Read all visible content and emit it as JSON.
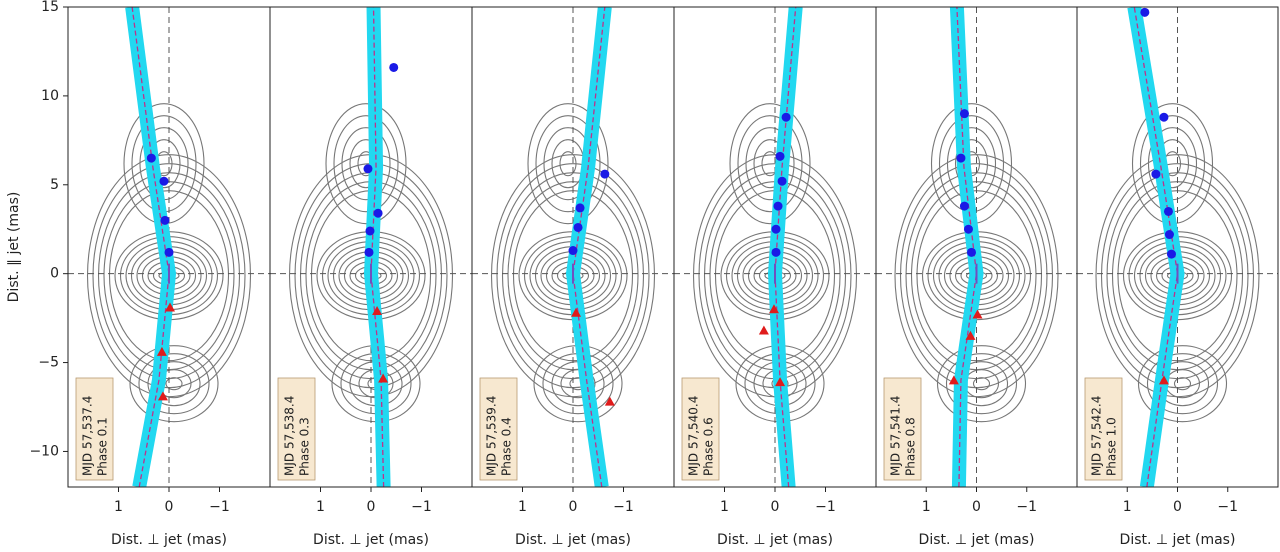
{
  "chart_data": [
    {
      "type": "scatter",
      "mjd": "MJD 57,537.4",
      "phase": "Phase 0.1",
      "x_label": "Dist. ⊥ jet (mas)",
      "y_label": "Dist. ∥ jet (mas)",
      "xlim": [
        2,
        -2
      ],
      "xticks": [
        1,
        0,
        {
          "value": -1,
          "label": "−1"
        }
      ],
      "ylim": [
        -12,
        15
      ],
      "yticks": [
        {
          "value": -10,
          "label": "−10"
        },
        {
          "value": -5,
          "label": "−5"
        },
        0,
        5,
        10,
        15
      ],
      "series": [
        {
          "marker": "circle",
          "color": "#1a1ae6",
          "x": [
            0.35,
            0.1,
            0.08,
            0
          ],
          "values": [
            6.5,
            5.2,
            3.0,
            1.2
          ]
        },
        {
          "marker": "triangle",
          "color": "#e01b1b",
          "x": [
            -0.02,
            0.14,
            0.12
          ],
          "values": [
            -1.9,
            -4.4,
            -6.9
          ]
        },
        {
          "marker": "line",
          "color": "#22d8f0",
          "x": [
            0.59,
            0.2,
            0,
            0.32,
            0.73
          ],
          "values": [
            -12,
            -6,
            0,
            6,
            15
          ]
        }
      ]
    },
    {
      "type": "scatter",
      "mjd": "MJD 57,538.4",
      "phase": "Phase 0.3",
      "x_label": "Dist. ⊥ jet (mas)",
      "xlim": [
        2,
        -2
      ],
      "xticks": [
        1,
        0,
        {
          "value": -1,
          "label": "−1"
        }
      ],
      "ylim": [
        -12,
        15
      ],
      "series": [
        {
          "marker": "circle",
          "color": "#1a1ae6",
          "x": [
            -0.45,
            0.06,
            -0.14,
            0.02,
            0.04
          ],
          "values": [
            11.6,
            5.9,
            3.4,
            2.4,
            1.2
          ]
        },
        {
          "marker": "triangle",
          "color": "#e01b1b",
          "x": [
            -0.12,
            -0.24
          ],
          "values": [
            -2.1,
            -5.9
          ]
        },
        {
          "marker": "line",
          "color": "#22d8f0",
          "x": [
            -0.25,
            -0.2,
            0,
            -0.1,
            -0.05
          ],
          "values": [
            -12,
            -6,
            0,
            6,
            15
          ]
        }
      ]
    },
    {
      "type": "scatter",
      "mjd": "MJD 57,539.4",
      "phase": "Phase 0.4",
      "x_label": "Dist. ⊥ jet (mas)",
      "xlim": [
        2,
        -2
      ],
      "xticks": [
        1,
        0,
        {
          "value": -1,
          "label": "−1"
        }
      ],
      "ylim": [
        -12,
        15
      ],
      "series": [
        {
          "marker": "circle",
          "color": "#1a1ae6",
          "x": [
            -0.63,
            -0.14,
            -0.1,
            0
          ],
          "values": [
            5.6,
            3.7,
            2.6,
            1.3
          ]
        },
        {
          "marker": "triangle",
          "color": "#e01b1b",
          "x": [
            -0.06,
            -0.73
          ],
          "values": [
            -2.2,
            -7.2
          ]
        },
        {
          "marker": "line",
          "color": "#22d8f0",
          "x": [
            -0.57,
            -0.27,
            0,
            -0.3,
            -0.63
          ],
          "values": [
            -12,
            -6,
            0,
            6,
            15
          ]
        }
      ]
    },
    {
      "type": "scatter",
      "mjd": "MJD 57,540.4",
      "phase": "Phase 0.6",
      "x_label": "Dist. ⊥ jet (mas)",
      "xlim": [
        2,
        -2
      ],
      "xticks": [
        1,
        0,
        {
          "value": -1,
          "label": "−1"
        }
      ],
      "ylim": [
        -12,
        15
      ],
      "series": [
        {
          "marker": "circle",
          "color": "#1a1ae6",
          "x": [
            -0.22,
            -0.1,
            -0.14,
            -0.06,
            -0.02,
            -0.02
          ],
          "values": [
            8.8,
            6.6,
            5.2,
            3.8,
            2.5,
            1.2
          ]
        },
        {
          "marker": "triangle",
          "color": "#e01b1b",
          "x": [
            0.02,
            0.22,
            -0.1
          ],
          "values": [
            -2.0,
            -3.2,
            -6.1
          ]
        },
        {
          "marker": "line",
          "color": "#22d8f0",
          "x": [
            -0.27,
            -0.1,
            0,
            -0.14,
            -0.41
          ],
          "values": [
            -12,
            -6,
            0,
            6,
            15
          ]
        }
      ]
    },
    {
      "type": "scatter",
      "mjd": "MJD 57,541.4",
      "phase": "Phase 0.8",
      "x_label": "Dist. ⊥ jet (mas)",
      "xlim": [
        2,
        -2
      ],
      "xticks": [
        1,
        0,
        {
          "value": -1,
          "label": "−1"
        }
      ],
      "ylim": [
        -12,
        15
      ],
      "series": [
        {
          "marker": "circle",
          "color": "#1a1ae6",
          "x": [
            0.24,
            0.31,
            0.24,
            0.16,
            0.1
          ],
          "values": [
            9.0,
            6.5,
            3.8,
            2.5,
            1.2
          ]
        },
        {
          "marker": "triangle",
          "color": "#e01b1b",
          "x": [
            -0.02,
            0.12,
            0.45
          ],
          "values": [
            -2.3,
            -3.5,
            -6.0
          ]
        },
        {
          "marker": "line",
          "color": "#22d8f0",
          "x": [
            0.35,
            0.31,
            0,
            0.25,
            0.39
          ],
          "values": [
            -12,
            -6,
            0,
            6,
            15
          ]
        }
      ]
    },
    {
      "type": "scatter",
      "mjd": "MJD 57,542.4",
      "phase": "Phase 1.0",
      "x_label": "Dist. ⊥ jet (mas)",
      "xlim": [
        2,
        -2
      ],
      "xticks": [
        1,
        0,
        {
          "value": -1,
          "label": "−1"
        }
      ],
      "ylim": [
        -12,
        15
      ],
      "series": [
        {
          "marker": "circle",
          "color": "#1a1ae6",
          "x": [
            0.65,
            0.27,
            0.43,
            0.18,
            0.16,
            0.12
          ],
          "values": [
            14.7,
            8.8,
            5.6,
            3.5,
            2.2,
            1.1
          ]
        },
        {
          "marker": "triangle",
          "color": "#e01b1b",
          "x": [
            0.27
          ],
          "values": [
            -6.0
          ]
        },
        {
          "marker": "line",
          "color": "#22d8f0",
          "x": [
            0.61,
            0.31,
            0,
            0.33,
            0.86
          ],
          "values": [
            -12,
            -6,
            0,
            6,
            15
          ]
        }
      ]
    }
  ]
}
